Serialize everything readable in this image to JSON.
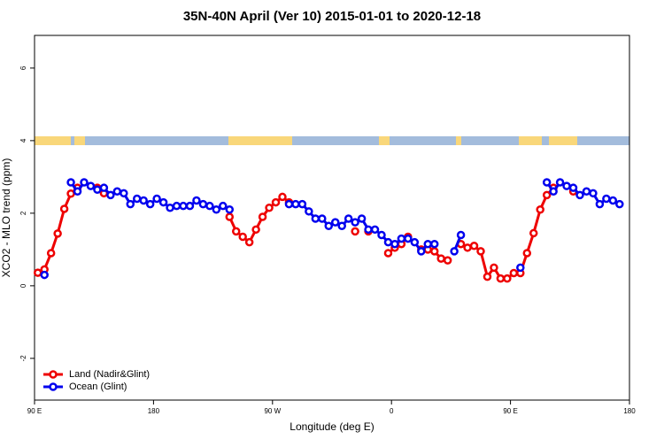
{
  "chart_data": {
    "type": "line",
    "title": "35N-40N April (Ver 10)   2015-01-01 to 2020-12-18",
    "x_label": "Longitude (deg E)",
    "y_label": "XCO2 - MLO trend (ppm)",
    "xlim": [
      90,
      540
    ],
    "xticks": [
      {
        "value": 90,
        "label": "90 E"
      },
      180,
      {
        "value": 270,
        "label": "90 W"
      },
      {
        "value": 360,
        "label": "0"
      },
      {
        "value": 450,
        "label": "90 E"
      },
      {
        "value": 540,
        "label": "180"
      }
    ],
    "ylim": [
      -3.15,
      6.9
    ],
    "yticks": [
      -2,
      0,
      2,
      4,
      6
    ],
    "legend": "bottomleft",
    "x": [
      92.5,
      97.5,
      102.5,
      107.5,
      112.5,
      117.5,
      122.5,
      127.5,
      132.5,
      137.5,
      142.5,
      147.5,
      152.5,
      157.5,
      162.5,
      167.5,
      172.5,
      177.5,
      182.5,
      187.5,
      192.5,
      197.5,
      202.5,
      207.5,
      212.5,
      217.5,
      222.5,
      227.5,
      232.5,
      237.5,
      242.5,
      247.5,
      252.5,
      257.5,
      262.5,
      267.5,
      272.5,
      277.5,
      282.5,
      287.5,
      292.5,
      297.5,
      302.5,
      307.5,
      312.5,
      317.5,
      322.5,
      327.5,
      332.5,
      337.5,
      342.5,
      347.5,
      352.5,
      357.5,
      362.5,
      367.5,
      372.5,
      377.5,
      382.5,
      387.5,
      392.5,
      397.5,
      402.5,
      407.5,
      412.5,
      417.5,
      422.5,
      427.5,
      432.5,
      437.5,
      442.5,
      447.5,
      452.5,
      457.5,
      462.5,
      467.5,
      472.5,
      477.5,
      482.5,
      487.5,
      492.5,
      497.5,
      502.5,
      507.5,
      512.5,
      517.5,
      522.5,
      527.5,
      532.5
    ],
    "series": [
      {
        "name": "Land (Nadir&Glint)",
        "color": "#ee0000",
        "values": [
          0.36,
          0.45,
          0.9,
          1.44,
          2.12,
          2.54,
          2.7,
          null,
          null,
          2.7,
          2.55,
          null,
          null,
          null,
          null,
          null,
          null,
          null,
          null,
          null,
          null,
          null,
          null,
          null,
          null,
          null,
          null,
          null,
          null,
          1.9,
          1.5,
          1.35,
          1.2,
          1.55,
          1.9,
          2.15,
          2.3,
          2.45,
          2.3,
          null,
          null,
          null,
          null,
          null,
          null,
          null,
          null,
          null,
          1.5,
          null,
          1.5,
          null,
          null,
          0.9,
          1.05,
          1.15,
          1.35,
          null,
          1.0,
          1.0,
          0.95,
          0.75,
          0.7,
          null,
          1.15,
          1.05,
          1.1,
          0.95,
          0.25,
          0.5,
          0.2,
          0.2,
          0.35,
          0.35,
          0.9,
          1.45,
          2.1,
          2.5,
          2.7,
          null,
          null,
          2.6,
          null,
          null,
          null,
          null,
          null,
          null,
          null
        ]
      },
      {
        "name": "Ocean (Glint)",
        "color": "#0000ee",
        "values": [
          null,
          0.3,
          null,
          null,
          null,
          2.85,
          2.6,
          2.85,
          2.75,
          2.65,
          2.7,
          2.5,
          2.6,
          2.55,
          2.25,
          2.4,
          2.35,
          2.25,
          2.4,
          2.3,
          2.15,
          2.2,
          2.2,
          2.2,
          2.35,
          2.25,
          2.2,
          2.1,
          2.2,
          2.1,
          null,
          null,
          null,
          null,
          null,
          null,
          null,
          null,
          2.25,
          2.25,
          2.25,
          2.05,
          1.85,
          1.85,
          1.65,
          1.75,
          1.65,
          1.85,
          1.75,
          1.85,
          1.55,
          1.55,
          1.4,
          1.2,
          1.15,
          1.3,
          1.3,
          1.2,
          0.95,
          1.15,
          1.15,
          null,
          null,
          0.95,
          1.4,
          null,
          null,
          null,
          null,
          null,
          null,
          null,
          null,
          0.5,
          null,
          null,
          null,
          2.85,
          2.6,
          2.85,
          2.75,
          2.7,
          2.5,
          2.6,
          2.55,
          2.25,
          2.4,
          2.35,
          2.25
        ]
      }
    ]
  }
}
